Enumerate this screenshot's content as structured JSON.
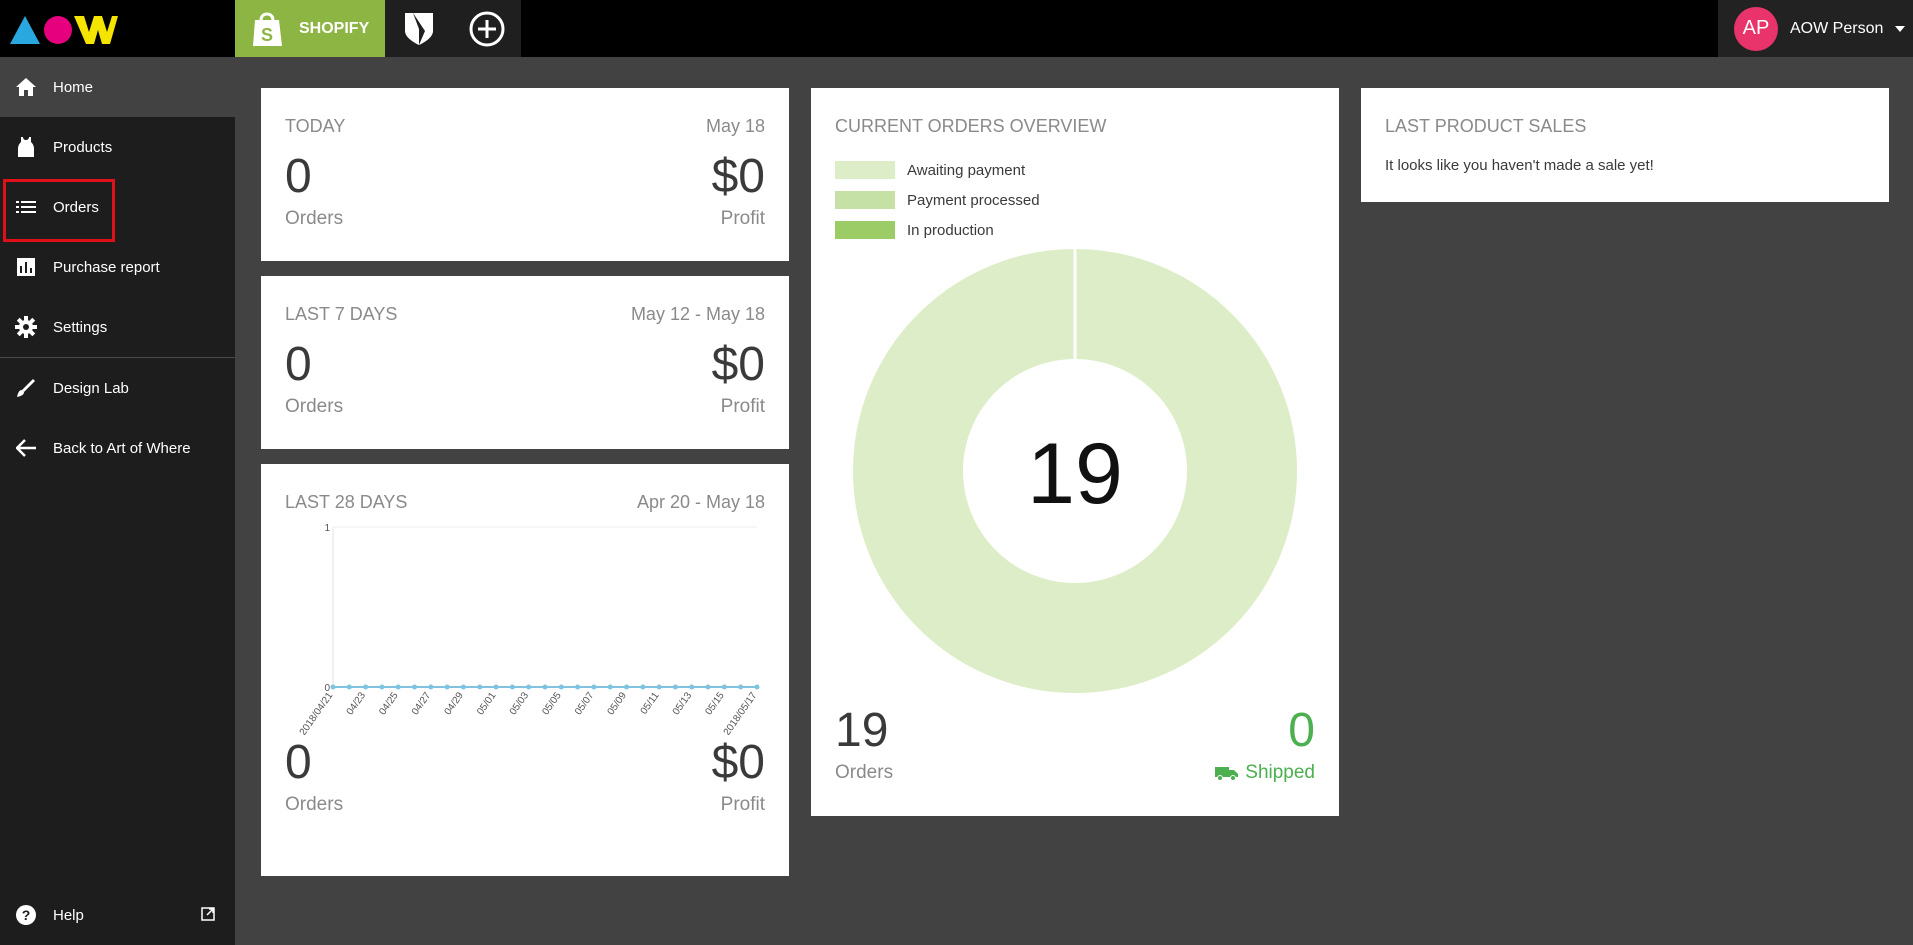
{
  "brand": {
    "logo_text": "AOW",
    "colors": {
      "triangle": "#29a8e0",
      "circle": "#e6007e",
      "w": "#f5e400"
    }
  },
  "topbar": {
    "store_tab_label": "SHOPIFY",
    "icons": [
      "shopify-bag-icon",
      "shield-logo-icon",
      "add-circle-icon"
    ],
    "user": {
      "initials": "AP",
      "name": "AOW Person",
      "avatar_color": "#e8336b"
    }
  },
  "sidebar": {
    "items": [
      {
        "label": "Home",
        "icon": "home-icon"
      },
      {
        "label": "Products",
        "icon": "tank-top-icon"
      },
      {
        "label": "Orders",
        "icon": "list-icon"
      },
      {
        "label": "Purchase report",
        "icon": "bar-chart-icon"
      },
      {
        "label": "Settings",
        "icon": "gear-icon"
      },
      {
        "label": "Design Lab",
        "icon": "brush-icon"
      },
      {
        "label": "Back to Art of Where",
        "icon": "arrow-left-icon"
      }
    ],
    "help_label": "Help"
  },
  "today": {
    "title": "TODAY",
    "date": "May 18",
    "orders": "0",
    "profit": "$0",
    "orders_label": "Orders",
    "profit_label": "Profit"
  },
  "last7": {
    "title": "LAST 7 DAYS",
    "date": "May 12 - May 18",
    "orders": "0",
    "profit": "$0",
    "orders_label": "Orders",
    "profit_label": "Profit"
  },
  "last28": {
    "title": "LAST 28 DAYS",
    "date": "Apr 20 - May 18",
    "orders": "0",
    "profit": "$0",
    "orders_label": "Orders",
    "profit_label": "Profit"
  },
  "chart_data": {
    "type": "line",
    "x": [
      "2018/04/21",
      "04/22",
      "04/23",
      "04/24",
      "04/25",
      "04/26",
      "04/27",
      "04/28",
      "04/29",
      "04/30",
      "05/01",
      "05/02",
      "05/03",
      "05/04",
      "05/05",
      "05/06",
      "05/07",
      "05/08",
      "05/09",
      "05/10",
      "05/11",
      "05/12",
      "05/13",
      "05/14",
      "05/15",
      "05/16",
      "2018/05/17"
    ],
    "x_tick_labels": [
      "2018/04/21",
      "04/23",
      "04/25",
      "04/27",
      "04/29",
      "05/01",
      "05/03",
      "05/05",
      "05/07",
      "05/09",
      "05/11",
      "05/13",
      "05/15",
      "2018/05/17"
    ],
    "series": [
      {
        "values": [
          0,
          0,
          0,
          0,
          0,
          0,
          0,
          0,
          0,
          0,
          0,
          0,
          0,
          0,
          0,
          0,
          0,
          0,
          0,
          0,
          0,
          0,
          0,
          0,
          0,
          0,
          0
        ]
      }
    ],
    "ylim": [
      0,
      1
    ],
    "y_tick_labels": [
      "1",
      "0"
    ],
    "line_color": "#7fc3e0",
    "grid": false
  },
  "orders_overview": {
    "title": "CURRENT ORDERS OVERVIEW",
    "legend": [
      {
        "label": "Awaiting payment",
        "color": "#dcedc8"
      },
      {
        "label": "Payment processed",
        "color": "#c5e1a5"
      },
      {
        "label": "In production",
        "color": "#9ccc65"
      }
    ],
    "donut_center": "19",
    "donut_segments": [
      {
        "label": "Awaiting payment",
        "value": 19
      }
    ],
    "orders": "19",
    "orders_label": "Orders",
    "shipped": "0",
    "shipped_label": "Shipped",
    "shipped_color": "#4caf50"
  },
  "last_sales": {
    "title": "LAST PRODUCT SALES",
    "message": "It looks like you haven't made a sale yet!"
  }
}
